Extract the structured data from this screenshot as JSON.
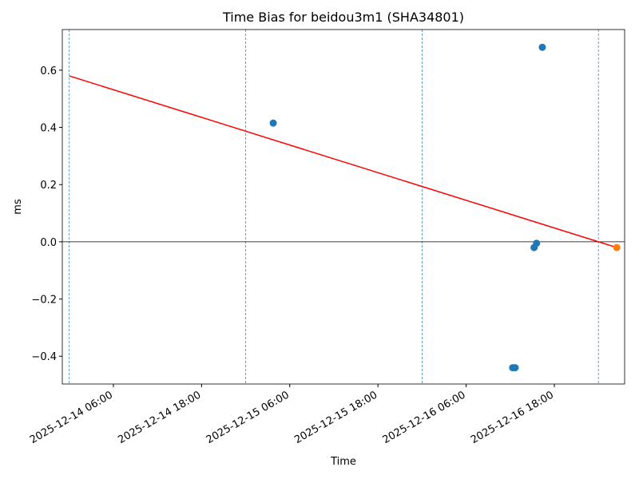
{
  "chart_data": {
    "type": "scatter",
    "title": "Time Bias for beidou3m1 (SHA34801)",
    "xlabel": "Time",
    "ylabel": "ms",
    "xlim": [
      "2025-12-13 23:03",
      "2025-12-17 03:34"
    ],
    "xticks": [
      "2025-12-14 06:00",
      "2025-12-14 18:00",
      "2025-12-15 06:00",
      "2025-12-15 18:00",
      "2025-12-16 06:00",
      "2025-12-16 18:00"
    ],
    "ylim": [
      -0.497,
      0.742
    ],
    "yticks": [
      {
        "value": -0.4,
        "label": "−0.4"
      },
      {
        "value": -0.2,
        "label": "−0.2"
      },
      {
        "value": 0,
        "label": "0.0"
      },
      0.2,
      0.4,
      0.6
    ],
    "hline": 0,
    "hline_color": "#000000",
    "vlines": [
      "2025-12-14 00:00",
      "2025-12-15 00:00",
      "2025-12-16 00:00",
      "2025-12-17 00:00"
    ],
    "vline_color": "#1f77b4",
    "series": [
      {
        "color": "#1f77b4",
        "x": [
          "2025-12-15 03:45",
          "2025-12-16 12:20",
          "2025-12-16 12:40",
          "2025-12-16 15:15",
          "2025-12-16 15:35",
          "2025-12-16 16:22"
        ],
        "values": [
          0.415,
          -0.44,
          -0.44,
          -0.02,
          -0.005,
          0.68
        ]
      },
      {
        "color": "#ff7f0e",
        "x": [
          "2025-12-17 02:30"
        ],
        "values": [
          -0.02
        ]
      }
    ],
    "trend": {
      "color": "#ff0000",
      "x": [
        "2025-12-14 00:00",
        "2025-12-17 02:30"
      ],
      "values": [
        0.58,
        -0.02
      ]
    }
  }
}
